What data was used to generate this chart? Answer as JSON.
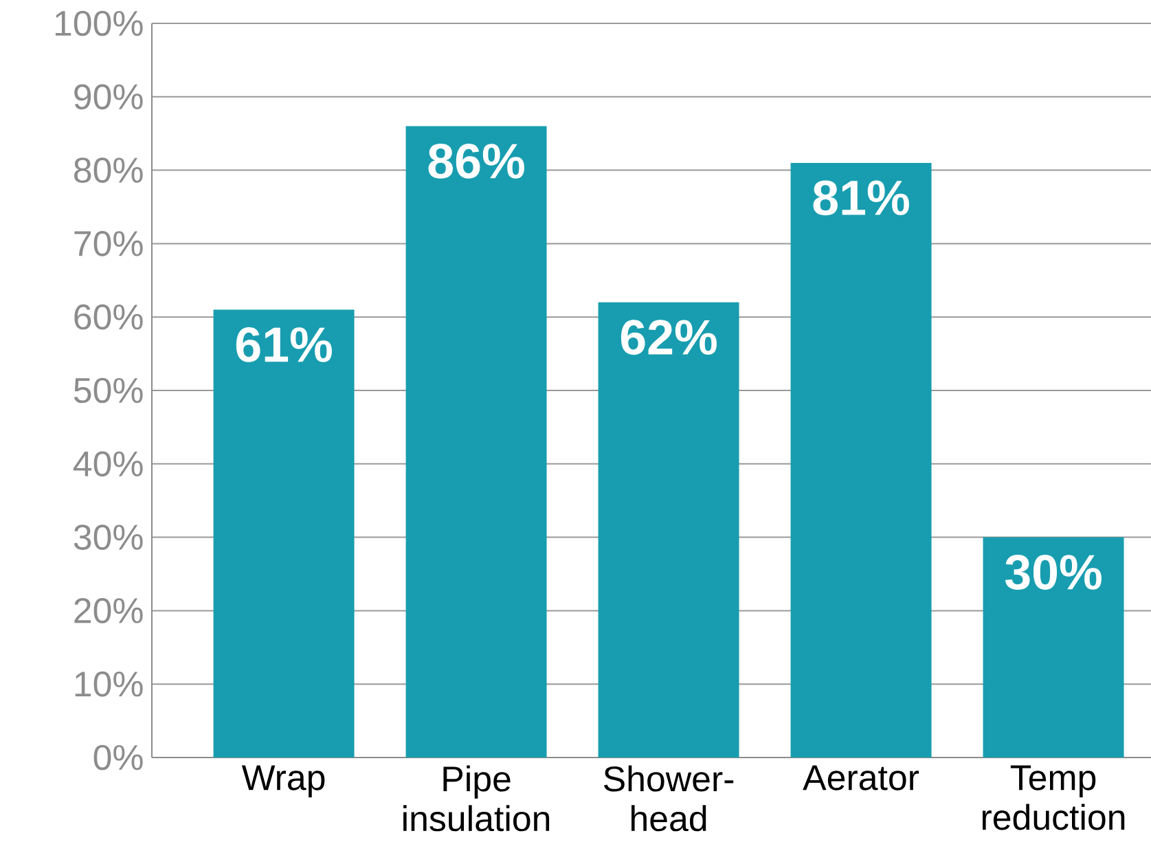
{
  "chart_data": {
    "type": "bar",
    "categories": [
      "Wrap",
      "Pipe insulation",
      "Shower-head",
      "Aerator",
      "Temp reduction"
    ],
    "values": [
      61,
      86,
      62,
      81,
      30
    ],
    "value_labels": [
      "61%",
      "86%",
      "62%",
      "81%",
      "30%"
    ],
    "color": "#189db0",
    "ylim": [
      0,
      100
    ],
    "yticks": [
      {
        "value": 0,
        "label": "0%"
      },
      {
        "value": 10,
        "label": "10%"
      },
      {
        "value": 20,
        "label": "20%"
      },
      {
        "value": 30,
        "label": "30%"
      },
      {
        "value": 40,
        "label": "40%"
      },
      {
        "value": 50,
        "label": "50%"
      },
      {
        "value": 60,
        "label": "60%"
      },
      {
        "value": 70,
        "label": "70%"
      },
      {
        "value": 80,
        "label": "80%"
      },
      {
        "value": 90,
        "label": "90%"
      },
      {
        "value": 100,
        "label": "100%"
      }
    ],
    "grid": "y"
  }
}
